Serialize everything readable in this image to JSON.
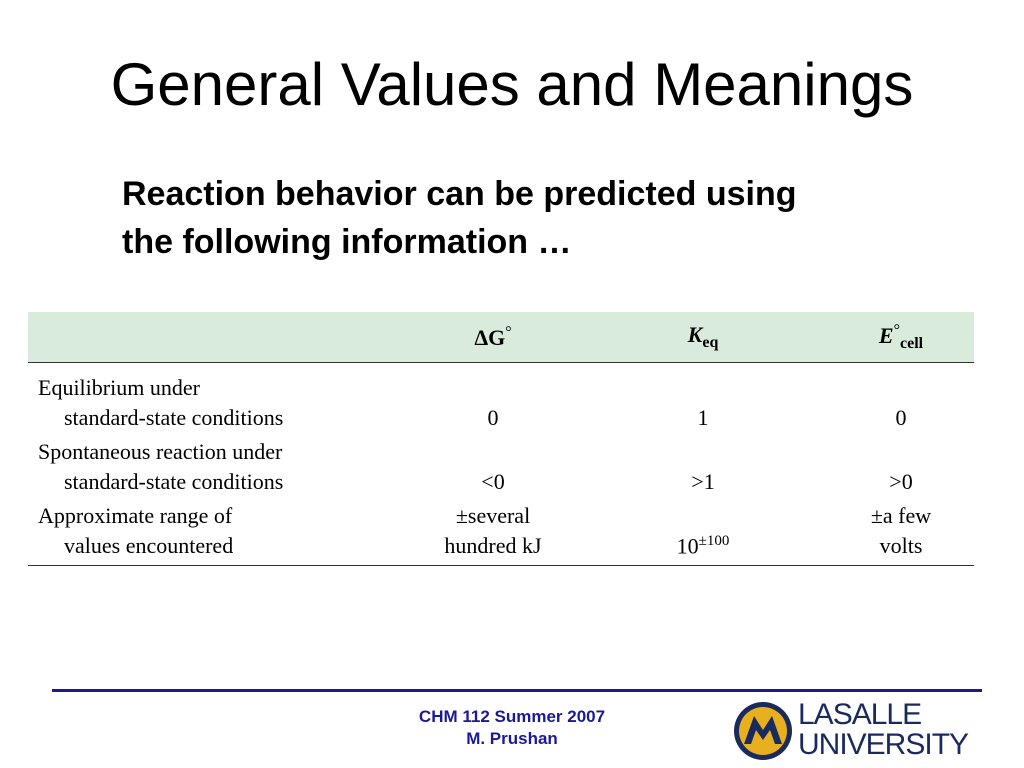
{
  "slide": {
    "title": "General Values and Meanings",
    "subtitle_line1": "Reaction behavior can be predicted using",
    "subtitle_line2": "the following information …"
  },
  "table": {
    "headers": {
      "col1_symbol": "ΔG",
      "col1_super": "°",
      "col2_symbol": "K",
      "col2_sub": "eq",
      "col3_symbol": "E",
      "col3_super": "°",
      "col3_sub": "cell"
    },
    "rows": [
      {
        "label_line1": "Equilibrium under",
        "label_line2": "standard-state conditions",
        "dG": "0",
        "K": "1",
        "E": "0"
      },
      {
        "label_line1": "Spontaneous reaction under",
        "label_line2": "standard-state conditions",
        "dG": "<0",
        "K": ">1",
        "E": ">0"
      },
      {
        "label_line1": "Approximate range of",
        "label_line2": "values encountered",
        "dG_line1": "±several",
        "dG_line2": "hundred kJ",
        "K_base": "10",
        "K_exp": "±100",
        "E_line1": "±a few",
        "E_line2": "volts"
      }
    ]
  },
  "footer": {
    "line1": "CHM 112 Summer 2007",
    "line2": "M. Prushan"
  },
  "logo": {
    "line1": "LASALLE",
    "line2": "UNIVERSITY",
    "colors": {
      "navy": "#1b2a5e",
      "gold": "#e8b01e"
    }
  },
  "colors": {
    "header_bg": "#d9ecdc",
    "footer_text": "#1a1a99",
    "footer_rule": "#1a1a8a"
  }
}
